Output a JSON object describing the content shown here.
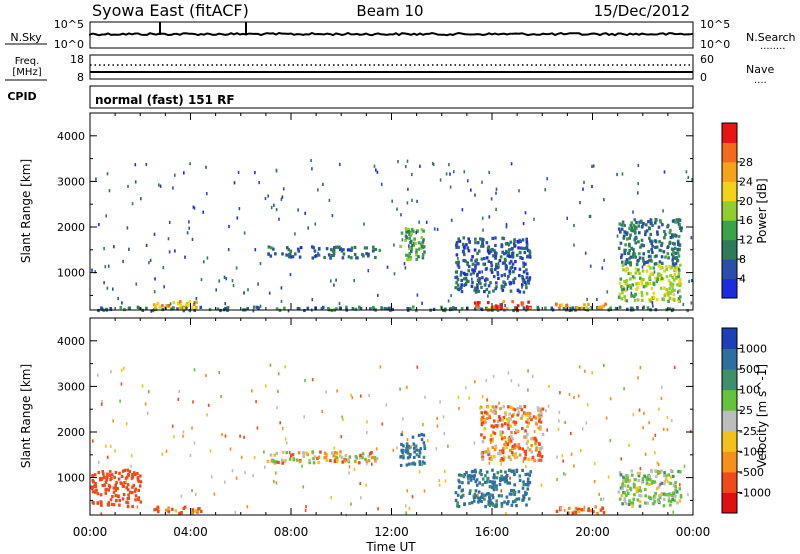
{
  "header": {
    "station": "Syowa East (fitACF)",
    "beam": "Beam 10",
    "date": "15/Dec/2012"
  },
  "nsky_panel": {
    "left_label": "N.Sky",
    "left_ticks": [
      "10^5",
      "10^0"
    ],
    "right_label": "N.Search",
    "right_ticks": [
      "10^5",
      "10^0"
    ],
    "right_legend": "........"
  },
  "freq_panel": {
    "left_label_1": "Freq.",
    "left_label_2": "[MHz]",
    "left_ticks": [
      "18",
      "8"
    ],
    "right_label": "Nave",
    "right_ticks": [
      "60",
      "0"
    ],
    "right_legend": "...."
  },
  "cpid_panel": {
    "label": "CPID",
    "mode_text": "normal (fast) 151 RF"
  },
  "colors": {
    "power_scale": [
      "#1d2be0",
      "#2a4fa8",
      "#2f7a5a",
      "#3aa247",
      "#8fce2d",
      "#f2d21a",
      "#f5a31a",
      "#f26b1a",
      "#e81515"
    ],
    "velocity_scale": [
      "#1d3fb8",
      "#2f6fa0",
      "#3f8f6a",
      "#66c23a",
      "#bdbdbd",
      "#f2c21a",
      "#f5901a",
      "#f04a1a",
      "#e01010"
    ]
  },
  "chart_data": [
    {
      "type": "heatmap",
      "title": "",
      "xlabel": "Time UT",
      "ylabel": "Slant Range [km]",
      "x_range_hours": [
        0,
        24
      ],
      "x_tick_labels": [
        "00:00",
        "04:00",
        "08:00",
        "12:00",
        "16:00",
        "20:00",
        "00:00"
      ],
      "y_range": [
        180,
        4500
      ],
      "y_tick_values": [
        1000,
        2000,
        3000,
        4000
      ],
      "y_tick_labels": [
        "1000",
        "2000",
        "3000",
        "4000"
      ],
      "colorbar": {
        "label": "Power [dB]",
        "range": [
          0,
          32
        ],
        "ticks": [
          "4",
          "8",
          "12",
          "16",
          "20",
          "24",
          "28"
        ]
      },
      "features": [
        {
          "t0": 0.0,
          "t1": 24.0,
          "r0": 200,
          "r1": 280,
          "value": 8
        },
        {
          "t0": 2.5,
          "t1": 4.5,
          "r0": 250,
          "r1": 400,
          "value": 22
        },
        {
          "t0": 7.0,
          "t1": 11.5,
          "r0": 1350,
          "r1": 1450,
          "value": 7
        },
        {
          "t0": 7.0,
          "t1": 11.5,
          "r0": 1500,
          "r1": 1600,
          "value": 7
        },
        {
          "t0": 12.3,
          "t1": 13.3,
          "r0": 1300,
          "r1": 2000,
          "value": 12
        },
        {
          "t0": 14.5,
          "t1": 17.5,
          "r0": 600,
          "r1": 1800,
          "value": 6
        },
        {
          "t0": 15.2,
          "t1": 17.5,
          "r0": 200,
          "r1": 400,
          "value": 28
        },
        {
          "t0": 18.5,
          "t1": 20.5,
          "r0": 250,
          "r1": 350,
          "value": 24
        },
        {
          "t0": 21.0,
          "t1": 23.5,
          "r0": 400,
          "r1": 1200,
          "value": 16
        },
        {
          "t0": 21.0,
          "t1": 23.5,
          "r0": 1200,
          "r1": 2200,
          "value": 8
        }
      ]
    },
    {
      "type": "heatmap",
      "title": "",
      "xlabel": "Time UT",
      "ylabel": "Slant Range [km]",
      "x_range_hours": [
        0,
        24
      ],
      "x_tick_labels": [
        "00:00",
        "04:00",
        "08:00",
        "12:00",
        "16:00",
        "20:00",
        "00:00"
      ],
      "y_range": [
        180,
        4500
      ],
      "y_tick_values": [
        1000,
        2000,
        3000,
        4000
      ],
      "y_tick_labels": [
        "1000",
        "2000",
        "3000",
        "4000"
      ],
      "colorbar": {
        "label": "Velocity [m s^-1]",
        "ticks": [
          "1000",
          "500",
          "100",
          "25",
          "-25",
          "-100",
          "-500",
          "-1000"
        ]
      },
      "features": [
        {
          "t0": 0.0,
          "t1": 2.0,
          "r0": 400,
          "r1": 1200,
          "value": -250
        },
        {
          "t0": 2.5,
          "t1": 4.5,
          "r0": 250,
          "r1": 400,
          "value": -150
        },
        {
          "t0": 7.0,
          "t1": 11.5,
          "r0": 1350,
          "r1": 1600,
          "value": 0
        },
        {
          "t0": 12.3,
          "t1": 13.3,
          "r0": 1300,
          "r1": 2000,
          "value": 600
        },
        {
          "t0": 14.5,
          "t1": 17.5,
          "r0": 400,
          "r1": 1200,
          "value": 600
        },
        {
          "t0": 15.5,
          "t1": 18.0,
          "r0": 1400,
          "r1": 2600,
          "value": -60
        },
        {
          "t0": 18.5,
          "t1": 20.5,
          "r0": 250,
          "r1": 400,
          "value": -150
        },
        {
          "t0": 21.0,
          "t1": 23.5,
          "r0": 400,
          "r1": 1200,
          "value": 150
        }
      ]
    }
  ]
}
